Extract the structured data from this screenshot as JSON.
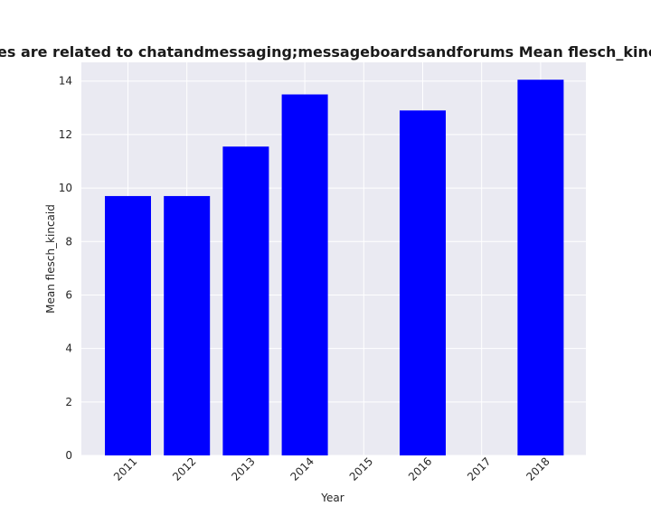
{
  "chart_data": {
    "type": "bar",
    "title": "es are related to chatandmessaging;messageboardsandforums Mean flesch_kincaid in privacy",
    "xlabel": "Year",
    "ylabel": "Mean flesch_kincaid",
    "categories": [
      "2011",
      "2012",
      "2013",
      "2014",
      "2015",
      "2016",
      "2017",
      "2018"
    ],
    "values": [
      9.7,
      9.7,
      11.55,
      13.5,
      null,
      12.9,
      null,
      14.05
    ],
    "ylim": [
      0,
      14.7
    ],
    "yticks": [
      0,
      2,
      4,
      6,
      8,
      10,
      12,
      14
    ],
    "grid": true,
    "colors": {
      "bar": "#0000ff",
      "plot_background": "#eaeaf2",
      "grid": "#ffffff"
    }
  }
}
